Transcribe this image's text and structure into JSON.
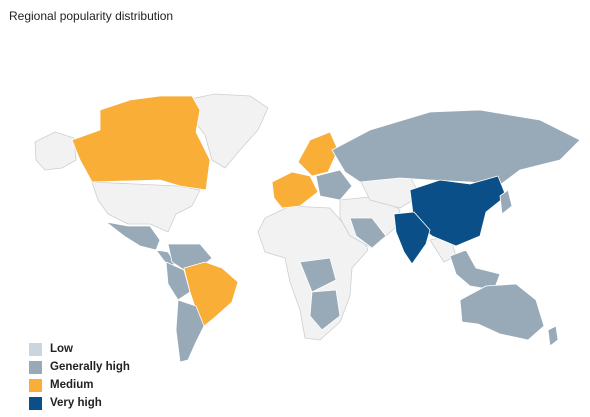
{
  "title": "Regional popularity distribution",
  "legend": [
    {
      "label": "Low",
      "color": "#c9d6e0"
    },
    {
      "label": "Generally high",
      "color": "#98aab8"
    },
    {
      "label": "Medium",
      "color": "#f9ae38"
    },
    {
      "label": "Very high",
      "color": "#0b4f88"
    }
  ]
}
